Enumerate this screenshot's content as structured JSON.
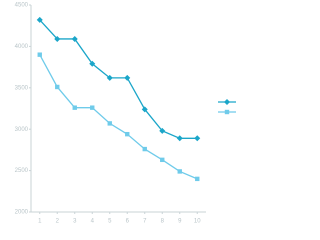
{
  "chart_data": {
    "type": "line",
    "categories": [
      "1",
      "2",
      "3",
      "4",
      "5",
      "6",
      "7",
      "8",
      "9",
      "10"
    ],
    "series": [
      {
        "color": "#1ba6c9",
        "marker": "diamond",
        "values": [
          4320,
          4090,
          4090,
          3790,
          3620,
          3620,
          3240,
          2980,
          2890,
          2890
        ]
      },
      {
        "color": "#6fcbea",
        "marker": "square",
        "values": [
          3900,
          3510,
          3260,
          3260,
          3070,
          2940,
          2760,
          2630,
          2490,
          2400
        ]
      }
    ],
    "ylim": [
      2000,
      4500
    ],
    "yticks": [
      2000,
      2500,
      3000,
      3500,
      4000,
      4500
    ]
  }
}
